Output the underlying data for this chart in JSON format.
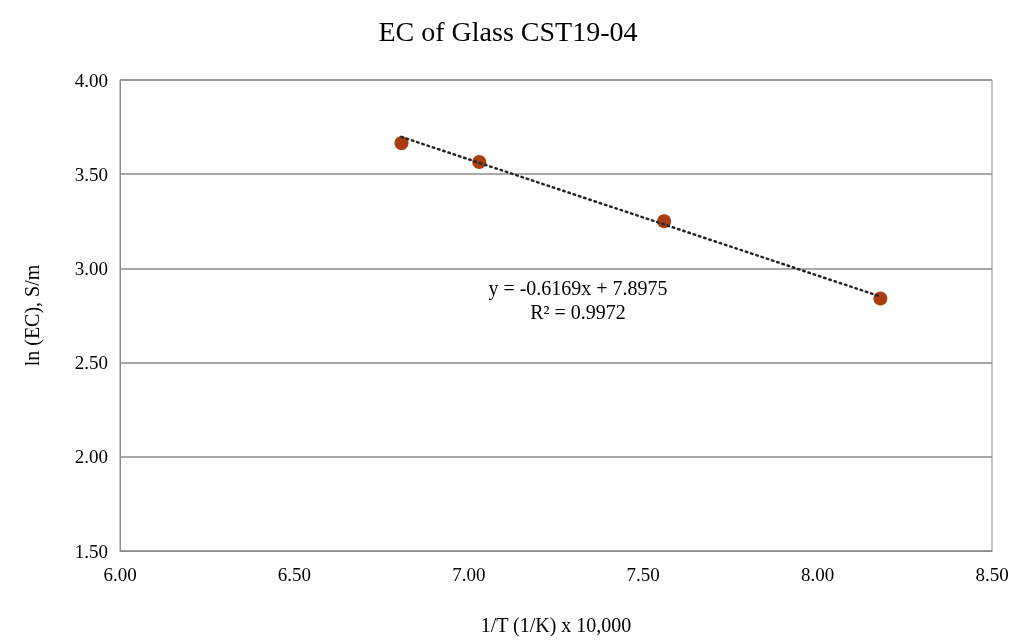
{
  "chart_data": {
    "type": "scatter",
    "title": "EC of Glass CST19-04",
    "xlabel": "1/T (1/K) x 10,000",
    "ylabel": "ln (EC), S/m",
    "x": [
      6.807,
      7.03,
      7.56,
      8.18
    ],
    "series": [
      {
        "color": "#a93c10",
        "marker": "circle",
        "values": [
          3.665,
          3.565,
          3.25,
          2.84
        ]
      },
      {
        "type": "line",
        "color": "#262626",
        "marker": "none",
        "line_style": "dotted",
        "x": [
          6.807,
          8.18
        ],
        "values": [
          3.698,
          2.851
        ]
      }
    ],
    "annotations": [
      "y = -0.6169x + 7.8975",
      "R² = 0.9972"
    ],
    "xlim": [
      6,
      8.5
    ],
    "xticks": [
      {
        "value": 6,
        "label": "6.00"
      },
      {
        "value": 6.5,
        "label": "6.50"
      },
      {
        "value": 7,
        "label": "7.00"
      },
      {
        "value": 7.5,
        "label": "7.50"
      },
      {
        "value": 8,
        "label": "8.00"
      },
      {
        "value": 8.5,
        "label": "8.50"
      }
    ],
    "ylim": [
      1.5,
      4
    ],
    "yticks": [
      {
        "value": 1.5,
        "label": "1.50"
      },
      {
        "value": 2,
        "label": "2.00"
      },
      {
        "value": 2.5,
        "label": "2.50"
      },
      {
        "value": 3,
        "label": "3.00"
      },
      {
        "value": 3.5,
        "label": "3.50"
      },
      {
        "value": 4,
        "label": "4.00"
      }
    ],
    "grid": "y"
  }
}
